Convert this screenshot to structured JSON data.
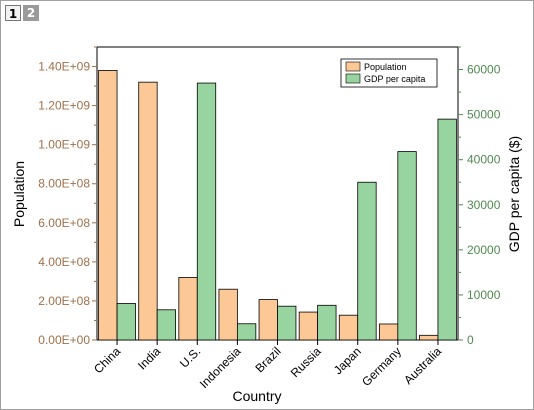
{
  "tabs": [
    {
      "label": "1",
      "active": true
    },
    {
      "label": "2",
      "active": false
    }
  ],
  "chart_data": {
    "type": "bar",
    "title": "",
    "xlabel": "Country",
    "ylabel": "Population",
    "y2label": "GDP per capita ($)",
    "categories": [
      "China",
      "India",
      "U.S.",
      "Indonesia",
      "Brazil",
      "Russia",
      "Japan",
      "Germany",
      "Australia"
    ],
    "series": [
      {
        "name": "Population",
        "axis": "left",
        "color": "#fbc896",
        "values": [
          1380000000,
          1320000000,
          320000000,
          260000000,
          207000000,
          143000000,
          127000000,
          82000000,
          24000000
        ]
      },
      {
        "name": "GDP per capita",
        "axis": "right",
        "color": "#98d49f",
        "values": [
          8100,
          6700,
          57000,
          3600,
          7500,
          7700,
          35000,
          41800,
          49000
        ]
      }
    ],
    "ylim": [
      0,
      1500000000
    ],
    "y2lim": [
      0,
      65000
    ],
    "yticks": [
      "0.00E+00",
      "2.00E+08",
      "4.00E+08",
      "6.00E+08",
      "8.00E+08",
      "1.00E+09",
      "1.20E+09",
      "1.40E+09"
    ],
    "y2ticks": [
      "0",
      "10000",
      "20000",
      "30000",
      "40000",
      "50000",
      "60000"
    ],
    "legend": "top-right",
    "grid": false
  }
}
